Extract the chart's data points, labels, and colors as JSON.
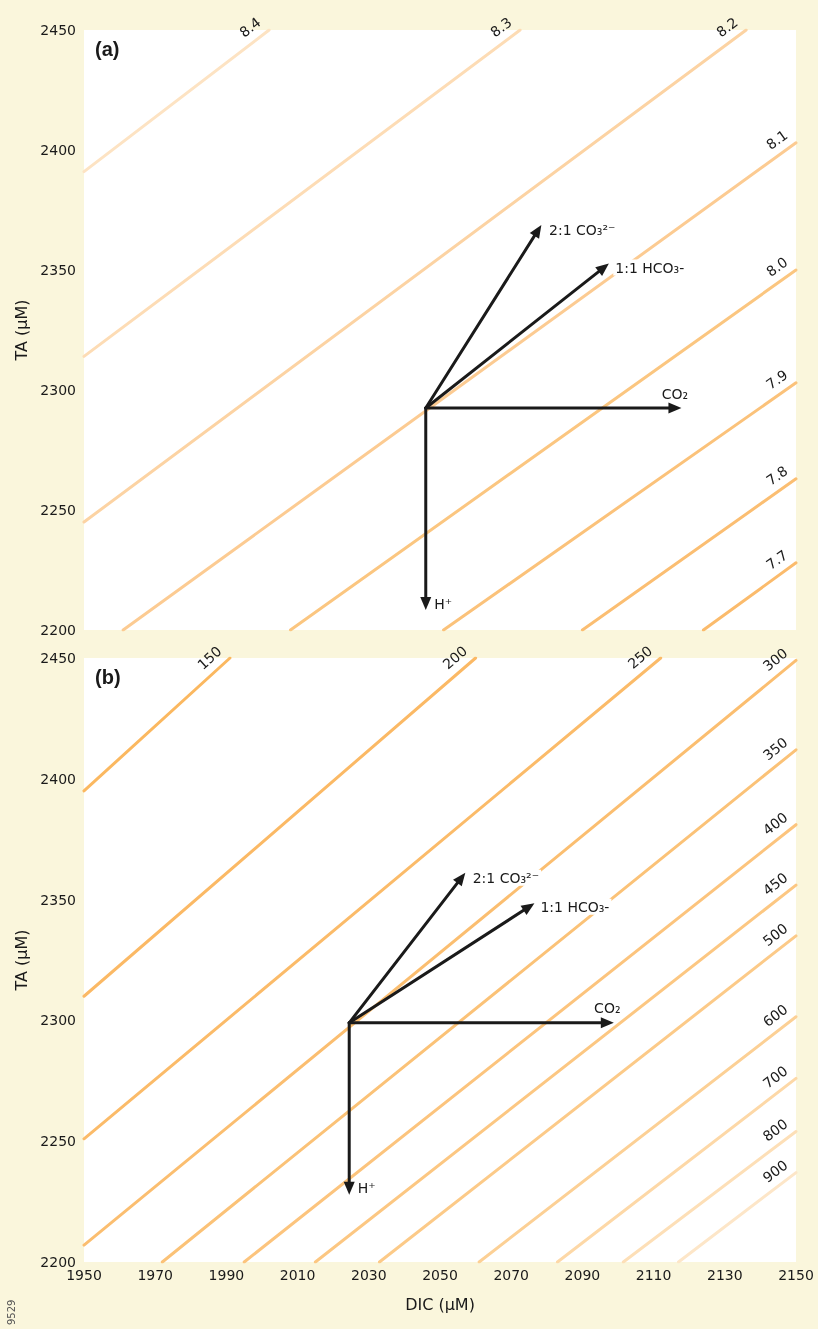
{
  "chart_data": [
    {
      "type": "line",
      "title": "(a)",
      "ylabel": "TA (μM)",
      "xlim": [
        1950,
        2150
      ],
      "xticks": [
        1950,
        1970,
        1990,
        2010,
        2030,
        2050,
        2070,
        2090,
        2110,
        2130,
        2150
      ],
      "ylim": [
        2200,
        2450
      ],
      "yticks": [
        2200,
        2250,
        2300,
        2350,
        2400,
        2450
      ],
      "tick_labels": "y",
      "grid": false,
      "marker": "none",
      "series": [
        {
          "name": "8.4",
          "color": "#fde3c3",
          "x": [
            1950,
            2002
          ],
          "values": [
            2391,
            2450
          ]
        },
        {
          "name": "8.3",
          "color": "#fddcb5",
          "x": [
            1950,
            2072.5
          ],
          "values": [
            2314,
            2450
          ]
        },
        {
          "name": "8.2",
          "color": "#fcd3a3",
          "x": [
            1950,
            2136
          ],
          "values": [
            2245,
            2450
          ]
        },
        {
          "name": "8.1",
          "color": "#fccb92",
          "x": [
            1961,
            2150
          ],
          "values": [
            2200,
            2403
          ]
        },
        {
          "name": "8.0",
          "color": "#fbc680",
          "x": [
            2008,
            2150
          ],
          "values": [
            2200,
            2350
          ]
        },
        {
          "name": "7.9",
          "color": "#fbc27a",
          "x": [
            2051,
            2150
          ],
          "values": [
            2200,
            2303
          ]
        },
        {
          "name": "7.8",
          "color": "#fbbe72",
          "x": [
            2090,
            2150
          ],
          "values": [
            2200,
            2263
          ]
        },
        {
          "name": "7.7",
          "color": "#fbbb6c",
          "x": [
            2124,
            2150
          ],
          "values": [
            2200,
            2228
          ]
        },
        {
          "name": "2:1 CO₃²⁻",
          "color": "#1a1a1a",
          "marker": "triangle",
          "x": [
            2046,
            2077.5
          ],
          "values": [
            2292.5,
            2366.5
          ]
        },
        {
          "name": "1:1 HCO₃-",
          "color": "#1a1a1a",
          "marker": "triangle",
          "x": [
            2046,
            2096
          ],
          "values": [
            2292.5,
            2351
          ]
        },
        {
          "name": "CO₂",
          "color": "#1a1a1a",
          "marker": "triangle",
          "x": [
            2046,
            2116
          ],
          "values": [
            2292.5,
            2292.5
          ]
        },
        {
          "name": "H⁺",
          "color": "#1a1a1a",
          "marker": "triangle",
          "x": [
            2046,
            2046
          ],
          "values": [
            2292.5,
            2211
          ]
        }
      ]
    },
    {
      "type": "line",
      "title": "(b)",
      "xlabel": "DIC (μM)",
      "ylabel": "TA (μM)",
      "xlim": [
        1950,
        2150
      ],
      "xticks": [
        1950,
        1970,
        1990,
        2010,
        2030,
        2050,
        2070,
        2090,
        2110,
        2130,
        2150
      ],
      "ylim": [
        2200,
        2450
      ],
      "yticks": [
        2200,
        2250,
        2300,
        2350,
        2400,
        2450
      ],
      "grid": false,
      "marker": "none",
      "series": [
        {
          "name": "150",
          "color": "#fbb860",
          "x": [
            1950,
            1991
          ],
          "values": [
            2395,
            2450
          ]
        },
        {
          "name": "200",
          "color": "#fbb965",
          "x": [
            1950,
            2060
          ],
          "values": [
            2310,
            2450
          ]
        },
        {
          "name": "250",
          "color": "#fbbb69",
          "x": [
            1950,
            2112
          ],
          "values": [
            2251,
            2450
          ]
        },
        {
          "name": "300",
          "color": "#fbbe70",
          "x": [
            1950,
            2150
          ],
          "values": [
            2207,
            2449
          ]
        },
        {
          "name": "350",
          "color": "#fbc277",
          "x": [
            1972,
            2150
          ],
          "values": [
            2200,
            2412
          ]
        },
        {
          "name": "400",
          "color": "#fcc47d",
          "x": [
            1995,
            2150
          ],
          "values": [
            2200,
            2381
          ]
        },
        {
          "name": "450",
          "color": "#fcc782",
          "x": [
            2015,
            2150
          ],
          "values": [
            2200,
            2356
          ]
        },
        {
          "name": "500",
          "color": "#fcca88",
          "x": [
            2033,
            2150
          ],
          "values": [
            2200,
            2335
          ]
        },
        {
          "name": "600",
          "color": "#fcd095",
          "x": [
            2061,
            2150
          ],
          "values": [
            2200,
            2301.5
          ]
        },
        {
          "name": "700",
          "color": "#fdd8a7",
          "x": [
            2083,
            2150
          ],
          "values": [
            2200,
            2276
          ]
        },
        {
          "name": "800",
          "color": "#fddfb7",
          "x": [
            2101.5,
            2150
          ],
          "values": [
            2200,
            2254
          ]
        },
        {
          "name": "900",
          "color": "#fde6c8",
          "x": [
            2117,
            2150
          ],
          "values": [
            2200,
            2237
          ]
        },
        {
          "name": "2:1 CO₃²⁻",
          "color": "#1a1a1a",
          "marker": "triangle",
          "x": [
            2024.5,
            2056
          ],
          "values": [
            2299,
            2359
          ]
        },
        {
          "name": "1:1 HCO₃-",
          "color": "#1a1a1a",
          "marker": "triangle",
          "x": [
            2024.5,
            2075
          ],
          "values": [
            2299,
            2347
          ]
        },
        {
          "name": "CO₂",
          "color": "#1a1a1a",
          "marker": "triangle",
          "x": [
            2024.5,
            2097
          ],
          "values": [
            2299,
            2299
          ]
        },
        {
          "name": "H⁺",
          "color": "#1a1a1a",
          "marker": "triangle",
          "x": [
            2024.5,
            2024.5
          ],
          "values": [
            2299,
            2230.5
          ]
        }
      ],
      "annotations": [
        "9529"
      ]
    }
  ]
}
